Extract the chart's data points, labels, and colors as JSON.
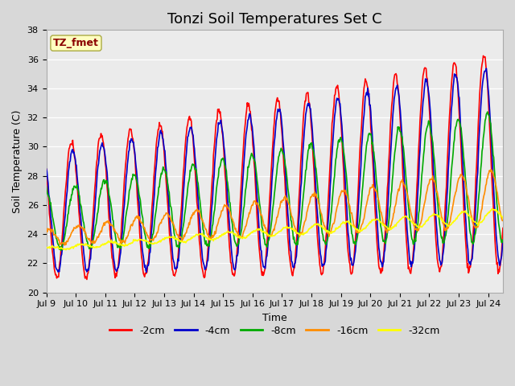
{
  "title": "Tonzi Soil Temperatures Set C",
  "xlabel": "Time",
  "ylabel": "Soil Temperature (C)",
  "ylim": [
    20,
    38
  ],
  "annotation_text": "TZ_fmet",
  "annotation_color": "#8B0000",
  "annotation_bg": "#FFFFC0",
  "series_colors": [
    "#FF0000",
    "#0000CC",
    "#00AA00",
    "#FF8C00",
    "#FFFF00"
  ],
  "series_labels": [
    "-2cm",
    "-4cm",
    "-8cm",
    "-16cm",
    "-32cm"
  ],
  "bg_color": "#D8D8D8",
  "plot_bg_color": "#EBEBEB",
  "grid_color": "#FFFFFF",
  "n_days": 15.5,
  "n_points": 744,
  "title_fontsize": 13,
  "label_fontsize": 9,
  "tick_fontsize": 8
}
